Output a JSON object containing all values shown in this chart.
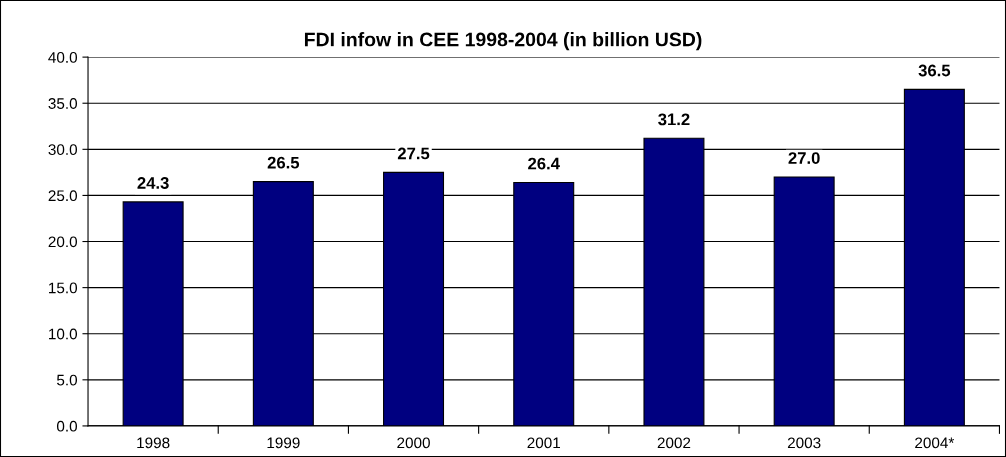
{
  "chart_data": {
    "type": "bar",
    "title": "FDI infow in CEE 1998-2004 (in billion USD)",
    "categories": [
      "1998",
      "1999",
      "2000",
      "2001",
      "2002",
      "2003",
      "2004*"
    ],
    "values": [
      24.3,
      26.5,
      27.5,
      26.4,
      31.2,
      27.0,
      36.5
    ],
    "value_labels": [
      "24.3",
      "26.5",
      "27.5",
      "26.4",
      "31.2",
      "27.0",
      "36.5"
    ],
    "color": "#000080",
    "ylim": [
      0,
      40
    ],
    "yticks": [
      {
        "value": 0,
        "label": "0.0"
      },
      {
        "value": 5,
        "label": "5.0"
      },
      {
        "value": 10,
        "label": "10.0"
      },
      {
        "value": 15,
        "label": "15.0"
      },
      {
        "value": 20,
        "label": "20.0"
      },
      {
        "value": 25,
        "label": "25.0"
      },
      {
        "value": 30,
        "label": "30.0"
      },
      {
        "value": 35,
        "label": "35.0"
      },
      {
        "value": 40,
        "label": "40.0"
      }
    ],
    "grid": "y"
  }
}
